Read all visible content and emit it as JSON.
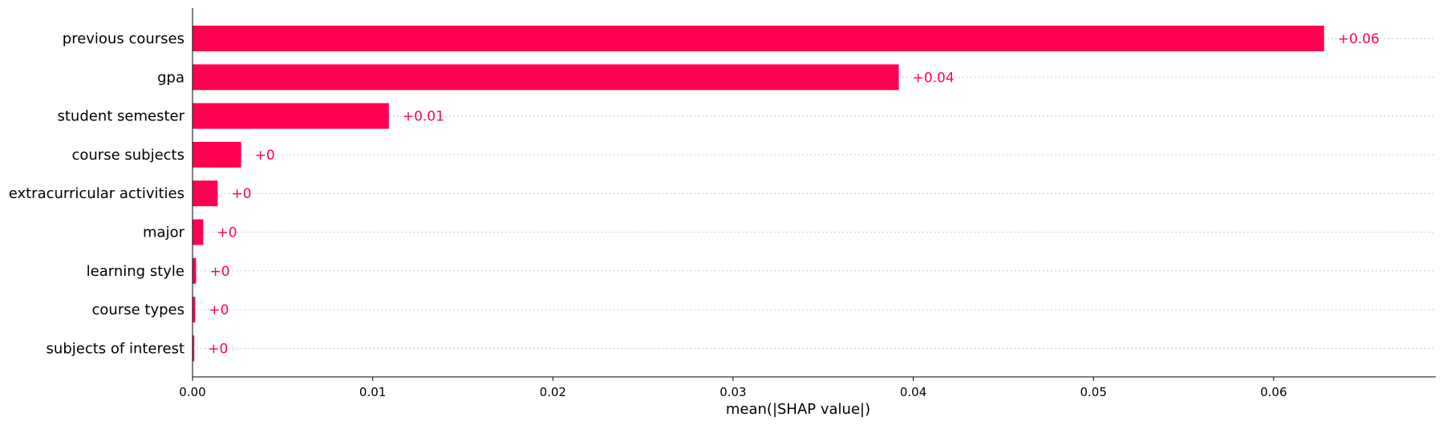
{
  "chart_data": {
    "type": "bar",
    "orientation": "horizontal",
    "categories": [
      "previous courses",
      "gpa",
      "student semester",
      "course subjects",
      "extracurricular activities",
      "major",
      "learning style",
      "course types",
      "subjects of interest"
    ],
    "values": [
      0.0628,
      0.0392,
      0.0109,
      0.0027,
      0.0014,
      0.0006,
      0.0002,
      0.00015,
      0.0001
    ],
    "value_labels": [
      "+0.06",
      "+0.04",
      "+0.01",
      "+0",
      "+0",
      "+0",
      "+0",
      "+0",
      "+0"
    ],
    "xlabel": "mean(|SHAP value|)",
    "xlim": [
      0,
      0.069
    ],
    "x_ticks": [
      0.0,
      0.01,
      0.02,
      0.03,
      0.04,
      0.05,
      0.06
    ],
    "x_tick_labels": [
      "0.00",
      "0.01",
      "0.02",
      "0.03",
      "0.04",
      "0.05",
      "0.06"
    ],
    "grid": "horizontal dotted",
    "colors": {
      "bar": "#ff0051",
      "label": "#ff0051",
      "grid": "#cccccc",
      "axis": "#000000"
    }
  }
}
